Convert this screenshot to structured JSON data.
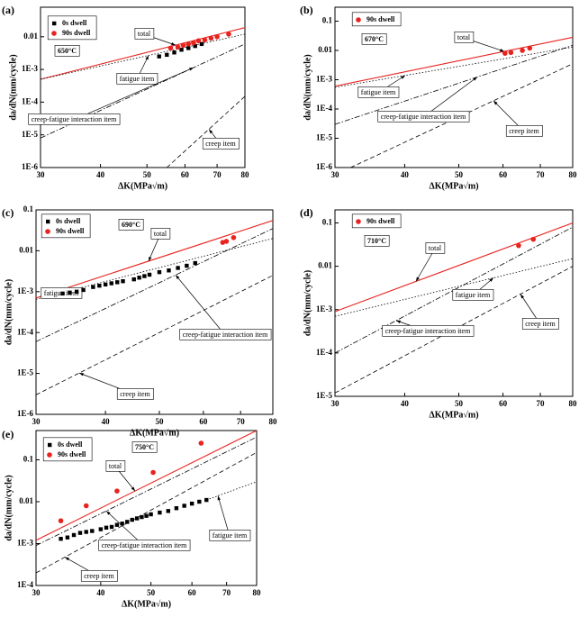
{
  "chart_data": [
    {
      "type": "line",
      "label": "(a)",
      "xlabel": "ΔK(MPa√m)",
      "ylabel": "da/dN(mm/cycle)",
      "log_x": true,
      "log_y": true,
      "temperature": "650°C",
      "xlim": [
        30,
        80
      ],
      "xticks": [
        30,
        40,
        50,
        60,
        70,
        80
      ],
      "ylim": [
        1e-06,
        0.08
      ],
      "yticks": [
        {
          "value": 1e-06,
          "label": "1E-6"
        },
        {
          "value": 1e-05,
          "label": "1E-5"
        },
        {
          "value": 0.0001,
          "label": "1E-4"
        },
        {
          "value": 0.001,
          "label": "1E-3"
        },
        0.01
      ],
      "series": [
        {
          "name": "total",
          "color": "#e8231f",
          "style": "solid",
          "x": [
            30,
            80
          ],
          "values": [
            0.0005,
            0.019
          ]
        },
        {
          "name": "fatigue item",
          "color": "#000000",
          "style": "dotted",
          "x": [
            30,
            80
          ],
          "values": [
            0.0005,
            0.012
          ]
        },
        {
          "name": "creep-fatigue interaction item",
          "color": "#000000",
          "style": "dash-dot",
          "x": [
            30,
            80
          ],
          "values": [
            8e-06,
            0.006
          ]
        },
        {
          "name": "creep item",
          "color": "#000000",
          "style": "dashed",
          "x": [
            55,
            80
          ],
          "values": [
            1e-06,
            0.00015
          ]
        },
        {
          "name": "0s dwell",
          "color": "#000000",
          "marker": "square",
          "x": [
            53,
            55,
            57,
            59,
            61,
            63,
            65
          ],
          "values": [
            0.0025,
            0.0028,
            0.0033,
            0.004,
            0.0045,
            0.0052,
            0.006
          ]
        },
        {
          "name": "90s dwell",
          "color": "#e8231f",
          "marker": "circle",
          "x": [
            56,
            58,
            59.5,
            61,
            62.5,
            64,
            66,
            68,
            70,
            74
          ],
          "values": [
            0.0045,
            0.0048,
            0.0055,
            0.006,
            0.0065,
            0.0075,
            0.008,
            0.009,
            0.01,
            0.012
          ]
        }
      ]
    },
    {
      "type": "line",
      "label": "(b)",
      "xlabel": "ΔK(MPa√m)",
      "ylabel": "da/dN(mm/cycle)",
      "log_x": true,
      "log_y": true,
      "temperature": "670°C",
      "xlim": [
        30,
        80
      ],
      "xticks": [
        30,
        40,
        50,
        60,
        70,
        80
      ],
      "ylim": [
        1e-06,
        0.3
      ],
      "yticks": [
        {
          "value": 1e-06,
          "label": "1E-6"
        },
        {
          "value": 1e-05,
          "label": "1E-5"
        },
        {
          "value": 0.0001,
          "label": "1E-4"
        },
        {
          "value": 0.001,
          "label": "1E-3"
        },
        0.01,
        0.1
      ],
      "series": [
        {
          "name": "total",
          "color": "#e8231f",
          "style": "solid",
          "x": [
            30,
            80
          ],
          "values": [
            0.0006,
            0.028
          ]
        },
        {
          "name": "fatigue item",
          "color": "#000000",
          "style": "dotted",
          "x": [
            30,
            80
          ],
          "values": [
            0.00055,
            0.013
          ]
        },
        {
          "name": "creep-fatigue interaction item",
          "color": "#000000",
          "style": "dash-dot",
          "x": [
            30,
            80
          ],
          "values": [
            3e-05,
            0.015
          ]
        },
        {
          "name": "creep item",
          "color": "#000000",
          "style": "dashed",
          "x": [
            32,
            80
          ],
          "values": [
            1e-06,
            0.0035
          ]
        },
        {
          "name": "90s dwell",
          "color": "#e8231f",
          "marker": "circle",
          "x": [
            60.5,
            62,
            65,
            67
          ],
          "values": [
            0.008,
            0.0085,
            0.01,
            0.012
          ]
        }
      ]
    },
    {
      "type": "line",
      "label": "(c)",
      "xlabel": "ΔK(MPa√m)",
      "ylabel": "da/dN(mm/cycle)",
      "log_x": true,
      "log_y": true,
      "temperature": "690°C",
      "xlim": [
        30,
        80
      ],
      "xticks": [
        30,
        40,
        50,
        60,
        70,
        80
      ],
      "ylim": [
        1e-06,
        0.1
      ],
      "yticks": [
        {
          "value": 1e-06,
          "label": "1E-6"
        },
        {
          "value": 1e-05,
          "label": "1E-5"
        },
        {
          "value": 0.0001,
          "label": "1E-4"
        },
        {
          "value": 0.001,
          "label": "1E-3"
        },
        0.01,
        0.1
      ],
      "series": [
        {
          "name": "total",
          "color": "#e8231f",
          "style": "solid",
          "x": [
            30,
            80
          ],
          "values": [
            0.0007,
            0.055
          ]
        },
        {
          "name": "fatigue item",
          "color": "#000000",
          "style": "dotted",
          "x": [
            30,
            80
          ],
          "values": [
            0.00065,
            0.02
          ]
        },
        {
          "name": "creep-fatigue interaction item",
          "color": "#000000",
          "style": "dash-dot",
          "x": [
            30,
            80
          ],
          "values": [
            6e-05,
            0.035
          ]
        },
        {
          "name": "creep item",
          "color": "#000000",
          "style": "dashed",
          "x": [
            30,
            80
          ],
          "values": [
            3e-06,
            0.0025
          ]
        },
        {
          "name": "0s dwell",
          "color": "#000000",
          "marker": "square",
          "x": [
            33.5,
            34.5,
            35.5,
            36.5,
            38,
            39,
            40,
            41,
            42,
            43,
            45,
            46,
            47,
            48,
            50,
            52,
            54,
            56,
            58
          ],
          "values": [
            0.0009,
            0.00095,
            0.001,
            0.0011,
            0.0013,
            0.0014,
            0.0015,
            0.0016,
            0.0017,
            0.0018,
            0.002,
            0.0022,
            0.0024,
            0.0026,
            0.003,
            0.0033,
            0.0038,
            0.0043,
            0.005
          ]
        },
        {
          "name": "90s dwell",
          "color": "#e8231f",
          "marker": "circle",
          "x": [
            65,
            66,
            68
          ],
          "values": [
            0.016,
            0.017,
            0.021
          ]
        }
      ]
    },
    {
      "type": "line",
      "label": "(d)",
      "xlabel": "ΔK(MPa√m)",
      "ylabel": "da/dN(mm/cycle)",
      "log_x": true,
      "log_y": true,
      "temperature": "710°C",
      "xlim": [
        30,
        80
      ],
      "xticks": [
        30,
        40,
        50,
        60,
        70,
        80
      ],
      "ylim": [
        1e-05,
        0.2
      ],
      "yticks": [
        {
          "value": 1e-05,
          "label": "1E-5"
        },
        {
          "value": 0.0001,
          "label": "1E-4"
        },
        {
          "value": 0.001,
          "label": "1E-3"
        },
        0.01,
        0.1
      ],
      "series": [
        {
          "name": "total",
          "color": "#e8231f",
          "style": "solid",
          "x": [
            30,
            80
          ],
          "values": [
            0.0009,
            0.1
          ]
        },
        {
          "name": "fatigue item",
          "color": "#000000",
          "style": "dotted",
          "x": [
            30,
            80
          ],
          "values": [
            0.0007,
            0.015
          ]
        },
        {
          "name": "creep-fatigue interaction item",
          "color": "#000000",
          "style": "dash-dot",
          "x": [
            30,
            80
          ],
          "values": [
            0.0001,
            0.08
          ]
        },
        {
          "name": "creep item",
          "color": "#000000",
          "style": "dashed",
          "x": [
            30,
            80
          ],
          "values": [
            1.2e-05,
            0.01
          ]
        },
        {
          "name": "90s dwell",
          "color": "#e8231f",
          "marker": "circle",
          "x": [
            64,
            68
          ],
          "values": [
            0.03,
            0.042
          ]
        }
      ]
    },
    {
      "type": "line",
      "label": "(e)",
      "xlabel": "ΔK(MPa√m)",
      "ylabel": "da/dN(mm/cycle)",
      "log_x": true,
      "log_y": true,
      "temperature": "750°C",
      "xlim": [
        30,
        80
      ],
      "xticks": [
        30,
        40,
        50,
        60,
        70,
        80
      ],
      "ylim": [
        0.0001,
        0.5
      ],
      "yticks": [
        {
          "value": 0.0001,
          "label": "1E-4"
        },
        {
          "value": 0.001,
          "label": "1E-3"
        },
        0.01,
        0.1
      ],
      "series": [
        {
          "name": "total",
          "color": "#e8231f",
          "style": "solid",
          "x": [
            30,
            80
          ],
          "values": [
            0.0012,
            0.5
          ]
        },
        {
          "name": "fatigue item",
          "color": "#000000",
          "style": "dotted",
          "x": [
            64,
            80
          ],
          "values": [
            0.011,
            0.03
          ]
        },
        {
          "name": "creep-fatigue interaction item",
          "color": "#000000",
          "style": "dash-dot",
          "x": [
            30,
            80
          ],
          "values": [
            0.0009,
            0.35
          ]
        },
        {
          "name": "creep item",
          "color": "#000000",
          "style": "dashed",
          "x": [
            30,
            80
          ],
          "values": [
            0.0002,
            0.15
          ]
        },
        {
          "name": "0s dwell",
          "color": "#000000",
          "marker": "square",
          "x": [
            33.5,
            34.5,
            35.5,
            36.5,
            37.5,
            38.5,
            40,
            41,
            42,
            43,
            44,
            45,
            46,
            47,
            48,
            49,
            50,
            52,
            54,
            56,
            58,
            60,
            62,
            64
          ],
          "values": [
            0.0013,
            0.0014,
            0.0016,
            0.0018,
            0.0019,
            0.002,
            0.0022,
            0.0024,
            0.0025,
            0.0028,
            0.003,
            0.0033,
            0.0037,
            0.004,
            0.0043,
            0.0046,
            0.005,
            0.0055,
            0.006,
            0.007,
            0.008,
            0.009,
            0.01,
            0.011
          ]
        },
        {
          "name": "90s dwell",
          "color": "#e8231f",
          "marker": "circle",
          "x": [
            33.5,
            37.5,
            43,
            50.5,
            62.5
          ],
          "values": [
            0.0035,
            0.008,
            0.018,
            0.05,
            0.25
          ]
        }
      ]
    }
  ]
}
